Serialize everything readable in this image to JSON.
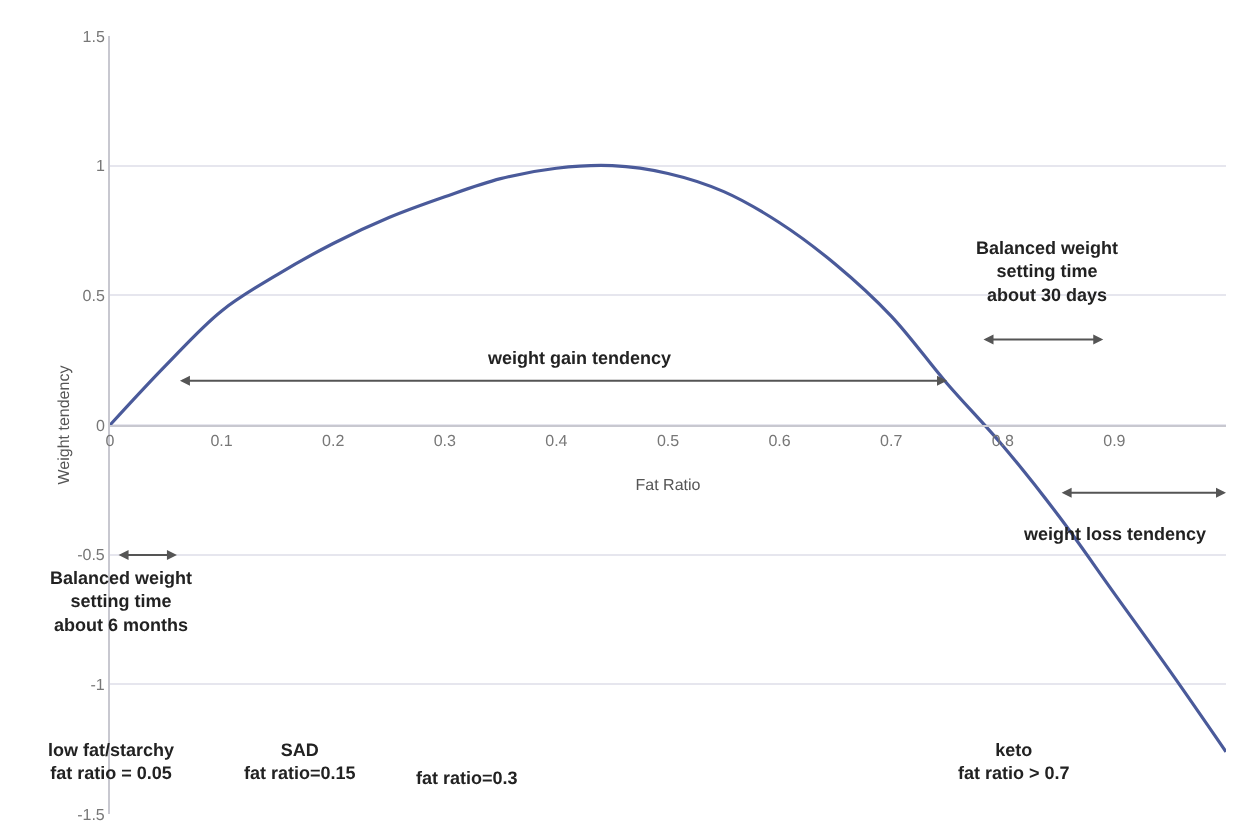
{
  "chart_data": {
    "type": "line",
    "xlabel": "Fat Ratio",
    "ylabel": "Weight tendency",
    "x": [
      0,
      0.05,
      0.1,
      0.15,
      0.2,
      0.25,
      0.3,
      0.35,
      0.4,
      0.45,
      0.5,
      0.55,
      0.6,
      0.65,
      0.7,
      0.75,
      0.8,
      0.85,
      0.9,
      0.95,
      1.0
    ],
    "series": [
      {
        "color": "#4a5a9a",
        "values": [
          0,
          0.23,
          0.44,
          0.58,
          0.7,
          0.8,
          0.88,
          0.95,
          0.99,
          1.0,
          0.97,
          0.9,
          0.78,
          0.62,
          0.42,
          0.16,
          -0.08,
          -0.35,
          -0.65,
          -0.95,
          -1.26
        ]
      }
    ],
    "xlim": [
      0,
      1
    ],
    "ylim": [
      -1.5,
      1.5
    ],
    "xticks": [
      0,
      0.1,
      0.2,
      0.3,
      0.4,
      0.5,
      0.6,
      0.7,
      0.8,
      0.9
    ],
    "yticks": [
      -1.5,
      -1,
      -0.5,
      0,
      0.5,
      1,
      1.5
    ],
    "grid": "y",
    "legend": false,
    "marker": "none",
    "line_style": "solid",
    "annotations": [
      "weight gain tendency",
      "Balanced weight\nsetting time\nabout 30 days",
      "weight loss tendency",
      "Balanced weight\nsetting time\nabout 6 months",
      "low fat/starchy\nfat ratio = 0.05",
      "SAD\nfat ratio=0.15",
      "fat ratio=0.3",
      "keto\nfat ratio > 0.7"
    ]
  }
}
